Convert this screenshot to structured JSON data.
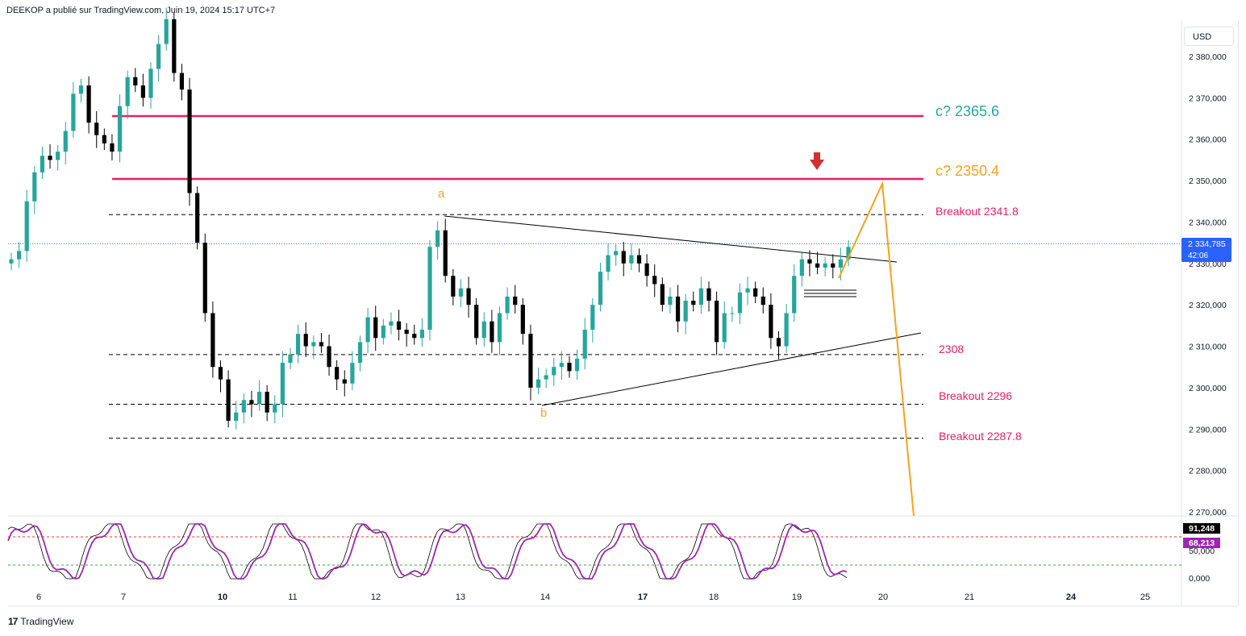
{
  "header": {
    "attribution": "DEEKOP a publié sur TradingView.com, Juin 19, 2024 15:17 UTC+7"
  },
  "footer": {
    "brand": "TradingView",
    "logo_mark": "17"
  },
  "price_scale": {
    "currency": "USD",
    "ticks": [
      "2 380,000",
      "2 370,000",
      "2 360,000",
      "2 350,000",
      "2 340,000",
      "2 330,000",
      "2 320,000",
      "2 310,000",
      "2 300,000",
      "2 290,000",
      "2 280,000",
      "2 270,000"
    ],
    "last_price_label": "2 334,785",
    "countdown_label": "42:06"
  },
  "indicator_scale": {
    "ticks": [
      "0,000"
    ],
    "k_label": "91,248",
    "d_label": "68,213",
    "level_label": "50,000",
    "k_color": "#000000",
    "d_color": "#9c27b0"
  },
  "time_axis": {
    "labels": [
      {
        "text": "6",
        "bold": false
      },
      {
        "text": "7",
        "bold": false
      },
      {
        "text": "10",
        "bold": true
      },
      {
        "text": "11",
        "bold": false
      },
      {
        "text": "12",
        "bold": false
      },
      {
        "text": "13",
        "bold": false
      },
      {
        "text": "14",
        "bold": false
      },
      {
        "text": "17",
        "bold": true
      },
      {
        "text": "18",
        "bold": false
      },
      {
        "text": "19",
        "bold": false
      },
      {
        "text": "20",
        "bold": false
      },
      {
        "text": "21",
        "bold": false
      },
      {
        "text": "24",
        "bold": true
      },
      {
        "text": "25",
        "bold": false
      }
    ]
  },
  "annotations": {
    "c_upper": {
      "text": "c? 2365.6",
      "color": "#26a69a"
    },
    "c_lower": {
      "text": "c? 2350.4",
      "color": "#f7a21b"
    },
    "breakout_high": {
      "text": "Breakout 2341.8",
      "color": "#e91e63"
    },
    "level_2308": {
      "text": "2308",
      "color": "#e91e63"
    },
    "breakout_2296": {
      "text": "Breakout 2296",
      "color": "#e91e63"
    },
    "breakout_2287": {
      "text": "Breakout 2287.8",
      "color": "#e91e63"
    },
    "wave_a": {
      "text": "a",
      "color": "#f7a21b"
    },
    "wave_b": {
      "text": "b",
      "color": "#f7a21b"
    }
  },
  "colors": {
    "up": "#26a69a",
    "down": "#000000",
    "magenta_lines": "#e91e63",
    "orange_path": "#f7a21b",
    "arrow": "#d32f2f",
    "last_price": "#2962ff"
  },
  "chart_data": {
    "type": "candlestick",
    "symbol_price_unit": "USD",
    "y_range": [
      2268,
      2392
    ],
    "horizontal_levels": [
      {
        "value": 2365.6,
        "style": "solid",
        "color": "#e91e63"
      },
      {
        "value": 2350.4,
        "style": "solid",
        "color": "#e91e63"
      },
      {
        "value": 2341.8,
        "style": "dashed",
        "color": "#000000"
      },
      {
        "value": 2308,
        "style": "dashed",
        "color": "#000000"
      },
      {
        "value": 2296,
        "style": "dashed",
        "color": "#000000"
      },
      {
        "value": 2287.8,
        "style": "dashed",
        "color": "#000000"
      }
    ],
    "last_price": 2334.785,
    "wave_labels": [
      {
        "label": "a",
        "price": 2341.8,
        "date": "12-13"
      },
      {
        "label": "b",
        "price": 2296,
        "date": "13-14"
      }
    ],
    "projection_path": [
      {
        "date": "19",
        "price": 2327
      },
      {
        "date": "20",
        "price": 2349
      },
      {
        "date": "20-21",
        "price": 2268
      }
    ],
    "close_series": [
      2331,
      2333,
      2345,
      2352,
      2356,
      2355,
      2357,
      2362,
      2371,
      2373,
      2364,
      2361,
      2359,
      2357,
      2368,
      2375,
      2373,
      2370,
      2377,
      2383,
      2389,
      2376,
      2372,
      2347,
      2335,
      2318,
      2305,
      2302,
      2292,
      2294,
      2297,
      2296,
      2299,
      2294,
      2296,
      2306,
      2308,
      2313,
      2310,
      2311,
      2310,
      2305,
      2302,
      2301,
      2306,
      2311,
      2317,
      2312,
      2315,
      2316,
      2314,
      2313,
      2312,
      2314,
      2334,
      2338,
      2327,
      2322,
      2324,
      2320,
      2312,
      2316,
      2311,
      2318,
      2322,
      2320,
      2313,
      2300,
      2302,
      2303,
      2305,
      2306,
      2304,
      2307,
      2314,
      2320,
      2328,
      2332,
      2333,
      2330,
      2332,
      2330,
      2327,
      2325,
      2320,
      2322,
      2316,
      2321,
      2320,
      2324,
      2321,
      2311,
      2318,
      2318,
      2323,
      2324,
      2322,
      2320,
      2312,
      2310,
      2318,
      2327,
      2331,
      2330,
      2329,
      2330,
      2329,
      2331,
      2334
    ]
  }
}
